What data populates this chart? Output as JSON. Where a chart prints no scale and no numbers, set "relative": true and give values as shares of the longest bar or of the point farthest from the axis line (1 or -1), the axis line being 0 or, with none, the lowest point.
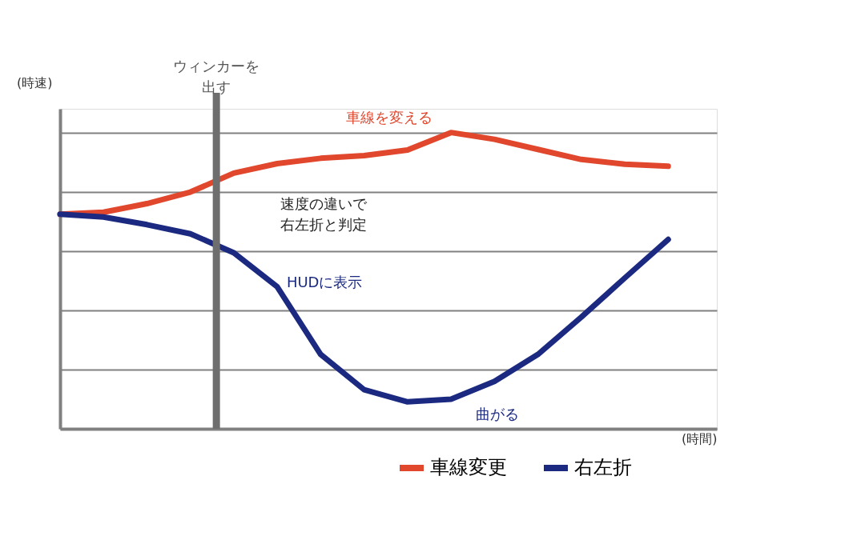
{
  "chart_data": {
    "type": "line",
    "relative": true,
    "xlabel": "(時間)",
    "ylabel": "(時速)",
    "categories": [
      null,
      null,
      null,
      null,
      null,
      null,
      null,
      null,
      null,
      null,
      null,
      null,
      null,
      null,
      null
    ],
    "grid": "y",
    "legend": "bottom right",
    "series": [
      {
        "name": "車線変更",
        "color": "#e0472c",
        "values": [
          0.724,
          0.731,
          0.76,
          0.799,
          0.863,
          0.895,
          0.913,
          0.922,
          0.941,
          1.0,
          0.977,
          0.943,
          0.909,
          0.893,
          0.886
        ]
      },
      {
        "name": "右左折",
        "color": "#1b2a80",
        "values": [
          0.724,
          0.715,
          0.689,
          0.658,
          0.594,
          0.479,
          0.251,
          0.132,
          0.091,
          0.1,
          0.16,
          0.251,
          0.377,
          0.509,
          0.639
        ]
      }
    ],
    "annotations": [
      "ウィンカーを出す",
      "車線を変える",
      "HUDに表示",
      "曲がる",
      "速度の違いで右左折と判定"
    ]
  }
}
